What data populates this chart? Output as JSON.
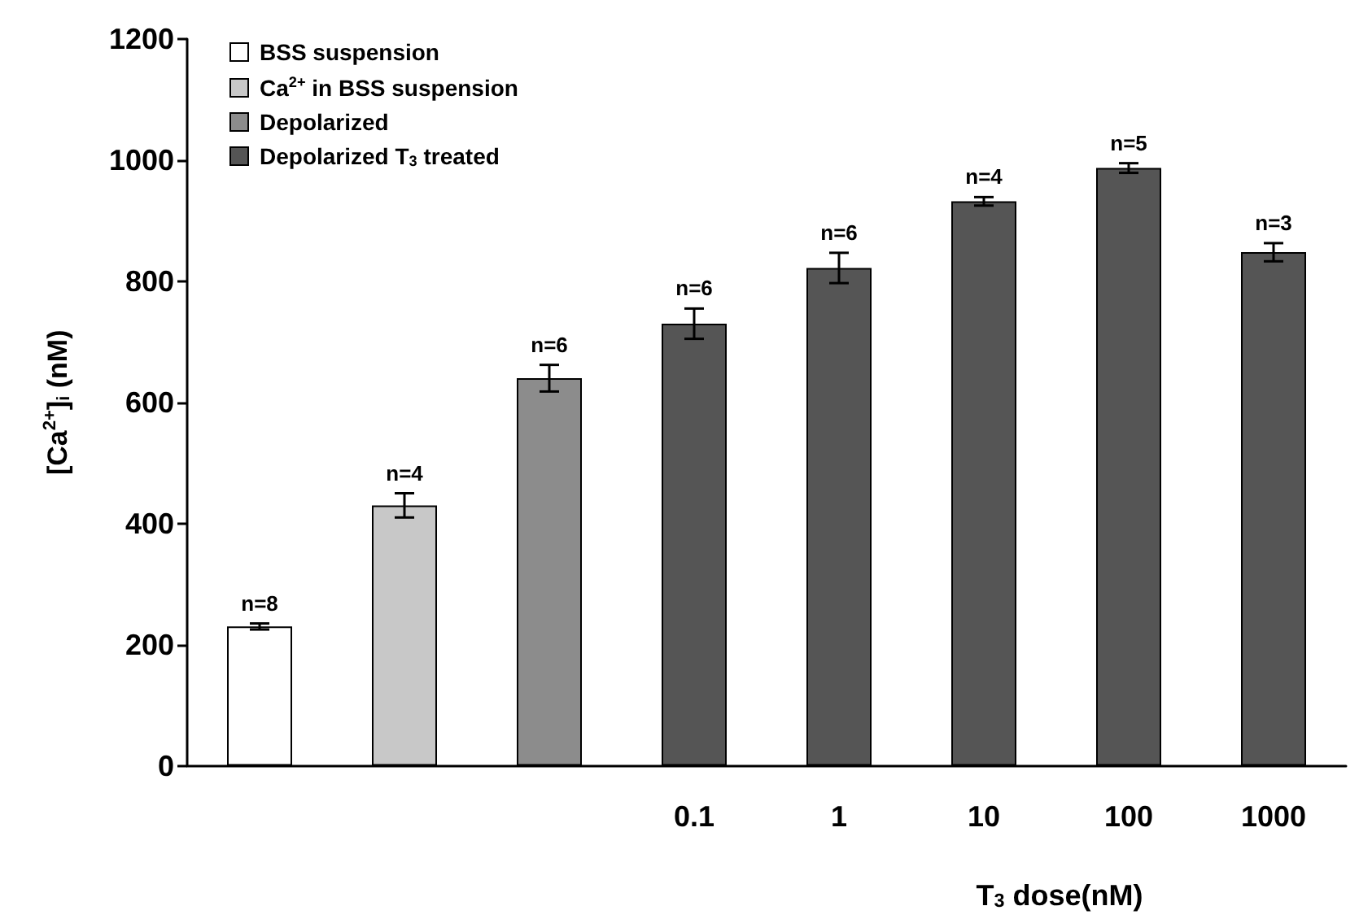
{
  "chart_data": {
    "type": "bar",
    "xlabel": "T$_{3}$ dose(nM)",
    "ylabel": "[Ca$^{2+}$]$_{i}$ (nM)",
    "categories": [
      null,
      null,
      null,
      "0.1",
      "1",
      "10",
      "100",
      "1000"
    ],
    "series": [
      {
        "name": "BSS suspension",
        "color": "#ffffff",
        "values": [
          230,
          null,
          null,
          null,
          null,
          null,
          null,
          null
        ],
        "errors": [
          5,
          null,
          null,
          null,
          null,
          null,
          null,
          null
        ]
      },
      {
        "name": "Ca$^{2+}$ in BSS suspension",
        "color": "#c8c8c8",
        "values": [
          null,
          430,
          null,
          null,
          null,
          null,
          null,
          null
        ],
        "errors": [
          null,
          20,
          null,
          null,
          null,
          null,
          null,
          null
        ]
      },
      {
        "name": "Depolarized",
        "color": "#8c8c8c",
        "values": [
          null,
          null,
          640,
          null,
          null,
          null,
          null,
          null
        ],
        "errors": [
          null,
          null,
          22,
          null,
          null,
          null,
          null,
          null
        ]
      },
      {
        "name": "Depolarized T$_{3}$ treated",
        "color": "#555555",
        "values": [
          null,
          null,
          null,
          730,
          822,
          932,
          987,
          848
        ],
        "errors": [
          null,
          null,
          null,
          25,
          25,
          7,
          8,
          15
        ]
      }
    ],
    "annotations": [
      {
        "text": "n=8",
        "y": 230
      },
      {
        "text": "n=4",
        "y": 430
      },
      {
        "text": "n=6",
        "y": 640
      },
      {
        "text": "n=6",
        "x": "0.1",
        "y": 730
      },
      {
        "text": "n=6",
        "x": "1",
        "y": 822
      },
      {
        "text": "n=4",
        "x": "10",
        "y": 932
      },
      {
        "text": "n=5",
        "x": "100",
        "y": 987
      },
      {
        "text": "n=3",
        "x": "1000",
        "y": 848
      }
    ],
    "ylim": [
      0,
      1200
    ],
    "yticks": [
      0,
      200,
      400,
      600,
      800,
      1000,
      1200
    ],
    "grid": false,
    "legend": "top left"
  }
}
